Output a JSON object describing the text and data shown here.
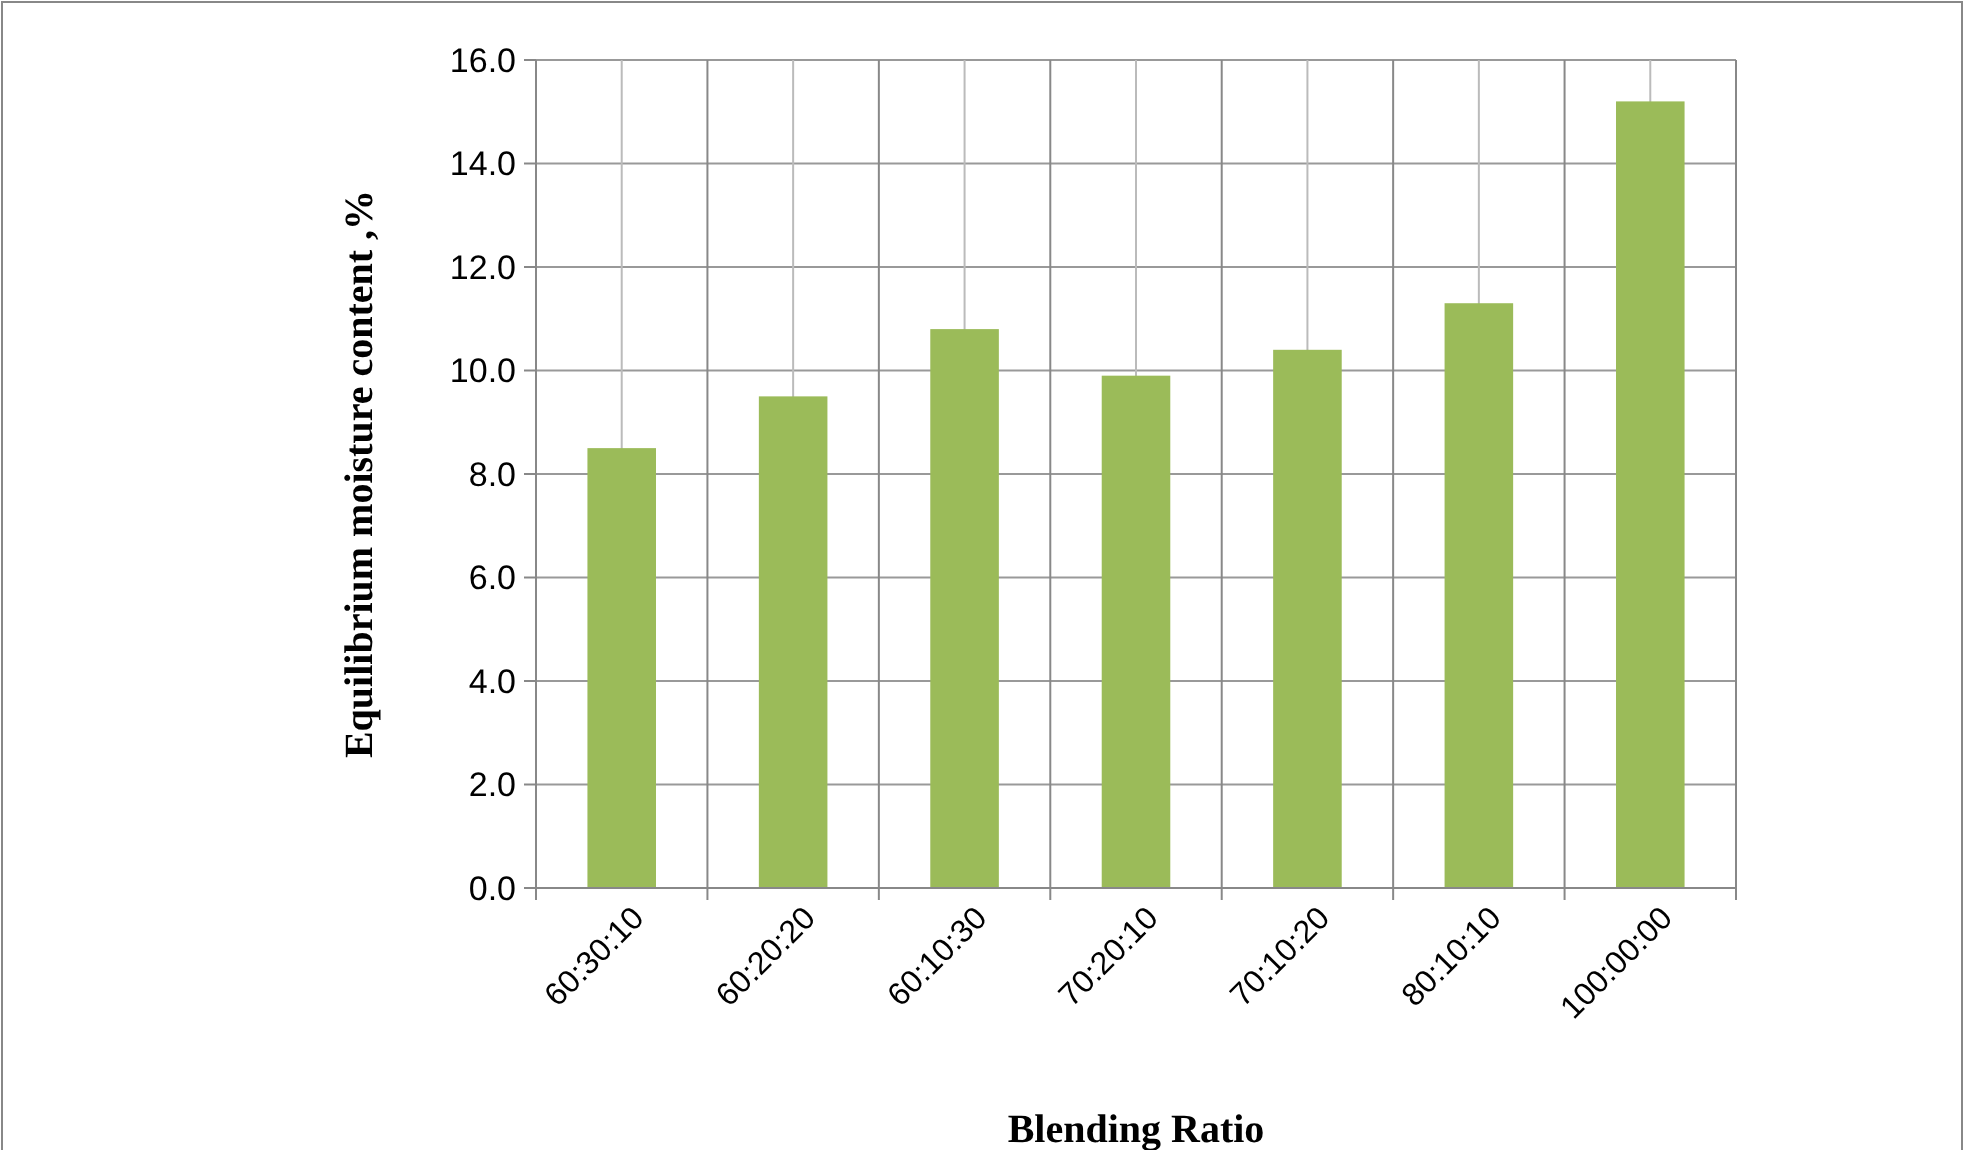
{
  "chart_data": {
    "type": "bar",
    "xlabel": "Blending Ratio",
    "ylabel": "Equilibrium moisture content ,%",
    "categories": [
      "60:30:10",
      "60:20:20",
      "60:10:30",
      "70:20:10",
      "70:10:20",
      "80:10:10",
      "100:00:00"
    ],
    "values": [
      8.5,
      9.5,
      10.8,
      9.9,
      10.4,
      11.3,
      15.2
    ],
    "color": "#9bbb59",
    "ylim": [
      0,
      16
    ],
    "yticks": [
      {
        "value": 0,
        "label": "0.0"
      },
      {
        "value": 2,
        "label": "2.0"
      },
      {
        "value": 4,
        "label": "4.0"
      },
      {
        "value": 6,
        "label": "6.0"
      },
      {
        "value": 8,
        "label": "8.0"
      },
      {
        "value": 10,
        "label": "10.0"
      },
      {
        "value": 12,
        "label": "12.0"
      },
      {
        "value": 14,
        "label": "14.0"
      },
      {
        "value": 16,
        "label": "16.0"
      }
    ],
    "grid": true
  }
}
